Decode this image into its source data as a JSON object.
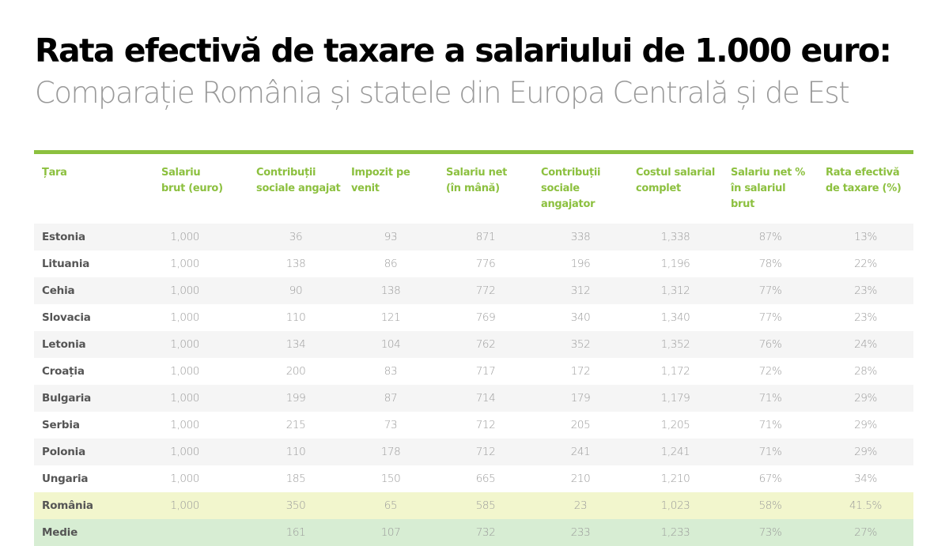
{
  "header": {
    "title": "Rata efectivă de taxare a salariului de 1.000 euro:",
    "subtitle": "Comparație România și statele din Europa Centrală și de Est"
  },
  "colors": {
    "accent": "#8cc03f",
    "row_alt": "#f5f5f5",
    "romania_highlight": "#f2f6cd",
    "average_highlight": "#d7edd3"
  },
  "table": {
    "columns": [
      "Țara",
      "Salariu brut (euro)",
      "Contribuții sociale angajat",
      "Impozit pe venit",
      "Salariu net (în mână)",
      "Contribuții sociale angajator",
      "Costul salarial complet",
      "Salariu net % în salariul brut",
      "Rata efectivă de taxare (%)"
    ],
    "column_lines": [
      [
        "Țara"
      ],
      [
        "Salariu",
        "brut (euro)"
      ],
      [
        "Contribuții",
        "sociale angajat"
      ],
      [
        "Impozit pe",
        "venit"
      ],
      [
        "Salariu net",
        "(în mână)"
      ],
      [
        "Contribuții",
        "sociale",
        "angajator"
      ],
      [
        "Costul salarial",
        "complet"
      ],
      [
        "Salariu net %",
        "în salariul",
        "brut"
      ],
      [
        "Rata efectivă",
        "de taxare (%)"
      ]
    ],
    "rows": [
      {
        "country": "Estonia",
        "gross": "1,000",
        "employee_contrib": "36",
        "income_tax": "93",
        "net": "871",
        "employer_contrib": "338",
        "total_cost": "1,338",
        "net_pct": "87%",
        "effective_rate": "13%",
        "style": "odd"
      },
      {
        "country": "Lituania",
        "gross": "1,000",
        "employee_contrib": "138",
        "income_tax": "86",
        "net": "776",
        "employer_contrib": "196",
        "total_cost": "1,196",
        "net_pct": "78%",
        "effective_rate": "22%",
        "style": "even"
      },
      {
        "country": "Cehia",
        "gross": "1,000",
        "employee_contrib": "90",
        "income_tax": "138",
        "net": "772",
        "employer_contrib": "312",
        "total_cost": "1,312",
        "net_pct": "77%",
        "effective_rate": "23%",
        "style": "odd"
      },
      {
        "country": "Slovacia",
        "gross": "1,000",
        "employee_contrib": "110",
        "income_tax": "121",
        "net": "769",
        "employer_contrib": "340",
        "total_cost": "1,340",
        "net_pct": "77%",
        "effective_rate": "23%",
        "style": "even"
      },
      {
        "country": "Letonia",
        "gross": "1,000",
        "employee_contrib": "134",
        "income_tax": "104",
        "net": "762",
        "employer_contrib": "352",
        "total_cost": "1,352",
        "net_pct": "76%",
        "effective_rate": "24%",
        "style": "odd"
      },
      {
        "country": "Croația",
        "gross": "1,000",
        "employee_contrib": "200",
        "income_tax": "83",
        "net": "717",
        "employer_contrib": "172",
        "total_cost": "1,172",
        "net_pct": "72%",
        "effective_rate": "28%",
        "style": "even"
      },
      {
        "country": "Bulgaria",
        "gross": "1,000",
        "employee_contrib": "199",
        "income_tax": "87",
        "net": "714",
        "employer_contrib": "179",
        "total_cost": "1,179",
        "net_pct": "71%",
        "effective_rate": "29%",
        "style": "odd"
      },
      {
        "country": "Serbia",
        "gross": "1,000",
        "employee_contrib": "215",
        "income_tax": "73",
        "net": "712",
        "employer_contrib": "205",
        "total_cost": "1,205",
        "net_pct": "71%",
        "effective_rate": "29%",
        "style": "even"
      },
      {
        "country": "Polonia",
        "gross": "1,000",
        "employee_contrib": "110",
        "income_tax": "178",
        "net": "712",
        "employer_contrib": "241",
        "total_cost": "1,241",
        "net_pct": "71%",
        "effective_rate": "29%",
        "style": "odd"
      },
      {
        "country": "Ungaria",
        "gross": "1,000",
        "employee_contrib": "185",
        "income_tax": "150",
        "net": "665",
        "employer_contrib": "210",
        "total_cost": "1,210",
        "net_pct": "67%",
        "effective_rate": "34%",
        "style": "even"
      },
      {
        "country": "România",
        "gross": "1,000",
        "employee_contrib": "350",
        "income_tax": "65",
        "net": "585",
        "employer_contrib": "23",
        "total_cost": "1,023",
        "net_pct": "58%",
        "effective_rate": "41.5%",
        "style": "highlight"
      },
      {
        "country": "Medie",
        "gross": "",
        "employee_contrib": "161",
        "income_tax": "107",
        "net": "732",
        "employer_contrib": "233",
        "total_cost": "1,233",
        "net_pct": "73%",
        "effective_rate": "27%",
        "style": "average"
      }
    ]
  }
}
